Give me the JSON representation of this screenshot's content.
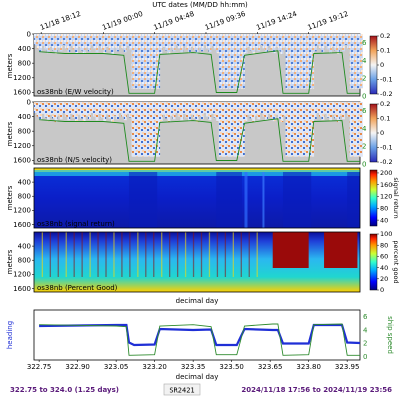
{
  "chart_data": [
    {
      "type": "heatmap",
      "label": "os38nb (E/W velocity)",
      "ylabel": "meters",
      "yticks": [
        0,
        400,
        800,
        1200,
        1600
      ],
      "ylim": [
        1700,
        0
      ],
      "colormap": "diverging",
      "colorbar": {
        "ticks": [
          0.2,
          0.1,
          0.0,
          -0.1,
          -0.2
        ],
        "range": [
          -0.2,
          0.2
        ]
      },
      "speed_ticks": [
        6,
        4,
        2,
        0
      ],
      "speed_range": [
        0,
        7
      ],
      "speed_series": [
        {
          "x": 322.75,
          "y": 5.0
        },
        {
          "x": 322.85,
          "y": 4.8
        },
        {
          "x": 323.0,
          "y": 4.8
        },
        {
          "x": 323.08,
          "y": 4.6
        },
        {
          "x": 323.1,
          "y": 0.3
        },
        {
          "x": 323.2,
          "y": 0.3
        },
        {
          "x": 323.22,
          "y": 4.7
        },
        {
          "x": 323.35,
          "y": 4.9
        },
        {
          "x": 323.42,
          "y": 4.7
        },
        {
          "x": 323.44,
          "y": 0.4
        },
        {
          "x": 323.52,
          "y": 0.4
        },
        {
          "x": 323.55,
          "y": 4.6
        },
        {
          "x": 323.65,
          "y": 5.0
        },
        {
          "x": 323.68,
          "y": 5.1
        },
        {
          "x": 323.7,
          "y": 0.3
        },
        {
          "x": 323.8,
          "y": 0.3
        },
        {
          "x": 323.82,
          "y": 4.8
        },
        {
          "x": 323.93,
          "y": 4.9
        },
        {
          "x": 323.95,
          "y": 0.3
        },
        {
          "x": 324.0,
          "y": 0.3
        }
      ]
    },
    {
      "type": "heatmap",
      "label": "os38nb (N/S velocity)",
      "ylabel": "meters",
      "yticks": [
        0,
        400,
        800,
        1200,
        1600
      ],
      "ylim": [
        1700,
        0
      ],
      "colormap": "diverging",
      "colorbar": {
        "ticks": [
          0.2,
          0.1,
          0.0,
          -0.1,
          -0.2
        ],
        "range": [
          -0.2,
          0.2
        ]
      },
      "speed_ticks": [
        6,
        4,
        2,
        0
      ],
      "speed_range": [
        0,
        7
      ]
    },
    {
      "type": "heatmap",
      "label": "os38nb (signal return)",
      "ylabel": "meters",
      "yticks": [
        400,
        800,
        1200,
        1600
      ],
      "ylim": [
        1700,
        0
      ],
      "colormap": "jet",
      "colorbar": {
        "ticks": [
          200,
          160,
          120,
          80,
          40
        ],
        "range": [
          20,
          210
        ],
        "label": "signal return"
      }
    },
    {
      "type": "heatmap",
      "label": "os38nb (Percent Good)",
      "ylabel": "meters",
      "yticks": [
        400,
        800,
        1200,
        1600
      ],
      "ylim": [
        1700,
        0
      ],
      "colormap": "jet",
      "colorbar": {
        "ticks": [
          100,
          80,
          60,
          40,
          20,
          0
        ],
        "range": [
          0,
          100
        ],
        "label": "percent good"
      },
      "xlabel": "decimal day"
    },
    {
      "type": "line",
      "ylabel_left": "heading",
      "ylabel_right": "ship speed",
      "x_ticks": [
        322.75,
        322.9,
        323.05,
        323.2,
        323.35,
        323.5,
        323.65,
        323.8,
        323.95
      ],
      "xlim": [
        322.73,
        324.0
      ],
      "right_ticks": [
        6,
        4,
        2,
        0
      ],
      "right_range": [
        -0.5,
        7
      ],
      "xlabel": "decimal day",
      "series": [
        {
          "color": "#1f2fd6",
          "points": [
            [
              322.75,
              0.68
            ],
            [
              322.9,
              0.69
            ],
            [
              323.05,
              0.7
            ],
            [
              323.09,
              0.7
            ],
            [
              323.1,
              0.35
            ],
            [
              323.12,
              0.3
            ],
            [
              323.2,
              0.31
            ],
            [
              323.22,
              0.62
            ],
            [
              323.35,
              0.6
            ],
            [
              323.42,
              0.61
            ],
            [
              323.44,
              0.3
            ],
            [
              323.52,
              0.3
            ],
            [
              323.55,
              0.62
            ],
            [
              323.66,
              0.6
            ],
            [
              323.68,
              0.6
            ],
            [
              323.7,
              0.33
            ],
            [
              323.8,
              0.33
            ],
            [
              323.82,
              0.7
            ],
            [
              323.93,
              0.7
            ],
            [
              323.95,
              0.35
            ],
            [
              324.0,
              0.34
            ]
          ]
        },
        {
          "color": "#2e8b2e",
          "points": [
            [
              322.75,
              4.8
            ],
            [
              322.9,
              4.7
            ],
            [
              323.05,
              4.6
            ],
            [
              323.09,
              4.5
            ],
            [
              323.1,
              0.2
            ],
            [
              323.2,
              0.3
            ],
            [
              323.22,
              4.6
            ],
            [
              323.35,
              4.8
            ],
            [
              323.42,
              4.5
            ],
            [
              323.44,
              0.3
            ],
            [
              323.52,
              0.3
            ],
            [
              323.55,
              4.6
            ],
            [
              323.66,
              4.9
            ],
            [
              323.68,
              4.9
            ],
            [
              323.7,
              0.2
            ],
            [
              323.8,
              0.3
            ],
            [
              323.82,
              4.8
            ],
            [
              323.93,
              4.9
            ],
            [
              323.95,
              0.2
            ],
            [
              324.0,
              0.2
            ]
          ]
        }
      ]
    }
  ],
  "top_axis": {
    "title": "UTC dates (MM/DD hh:mm)",
    "labels": [
      "11/18 18:12",
      "11/19 00:00",
      "11/19 04:48",
      "11/19 09:36",
      "11/19 14:24",
      "11/19 19:12"
    ],
    "positions_day": [
      322.758,
      323.0,
      323.2,
      323.4,
      323.6,
      323.8
    ]
  },
  "footer": {
    "left": "322.75 to 324.0 (1.25 days)",
    "middle": "SR2421",
    "right": "2024/11/18 17:56 to 2024/11/19 23:56"
  }
}
